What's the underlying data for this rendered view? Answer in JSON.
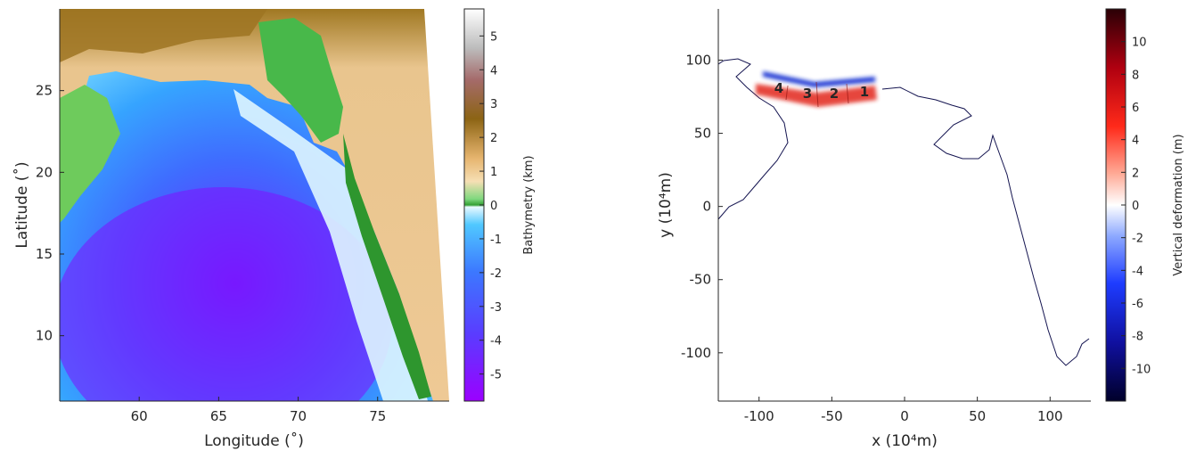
{
  "chart_data": [
    {
      "type": "heatmap",
      "subject": "bathymetry map",
      "xlabel": "Longitude (˚)",
      "ylabel": "Latitude (˚)",
      "xlim": [
        55,
        79.5
      ],
      "ylim": [
        6,
        30
      ],
      "xticks": [
        60,
        65,
        70,
        75
      ],
      "yticks": [
        10,
        15,
        20,
        25
      ],
      "colorbar": {
        "label": "Bathymetry (km)",
        "range": [
          -5.8,
          5.8
        ],
        "ticks": [
          5,
          4,
          3,
          2,
          1,
          0,
          -1,
          -2,
          -3,
          -4,
          -5
        ]
      },
      "colors": {
        "deep": "#9b00ff",
        "mid_deep": "#3c60ff",
        "shallow": "#26b4ff",
        "coast": "#ddf7ff",
        "lowland": "#2f9c2f",
        "plain": "#ebc996",
        "upland": "#946a14",
        "high": "#a56b6b",
        "peak": "#ffffff"
      }
    },
    {
      "type": "heatmap",
      "subject": "vertical deformation",
      "xlabel": "x (10⁴m)",
      "ylabel": "y (10⁴m)",
      "xlim": [
        -128,
        128
      ],
      "ylim": [
        -133,
        135
      ],
      "xticks": [
        -100,
        -50,
        0,
        50,
        100
      ],
      "yticks": [
        100,
        50,
        0,
        -50,
        -100
      ],
      "segments": [
        "1",
        "2",
        "3",
        "4"
      ],
      "colorbar": {
        "label": "Vertical deformation (m)",
        "range": [
          -12,
          12
        ],
        "ticks": [
          10,
          8,
          6,
          4,
          2,
          0,
          -2,
          -4,
          -6,
          -8,
          -10
        ]
      },
      "colors": {
        "uplift": "#e2281e",
        "subsidence": "#1432d2",
        "coastline": "#141450"
      }
    }
  ]
}
